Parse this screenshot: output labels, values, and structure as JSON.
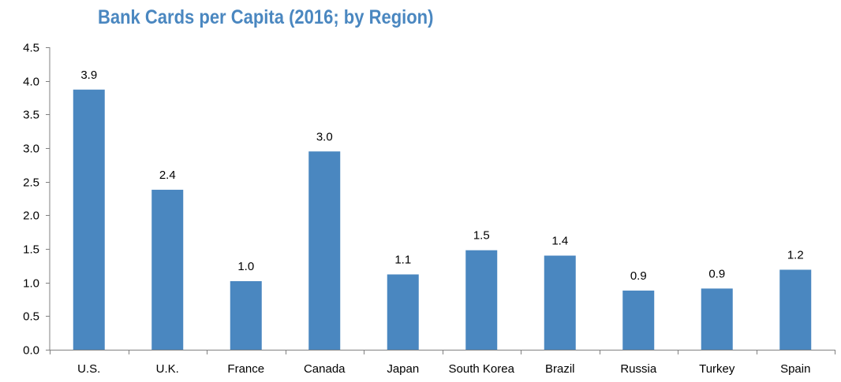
{
  "colors": {
    "title": "#4a87c0",
    "bar": "#4a87c0",
    "axis": "#808080",
    "text": "#000000"
  },
  "chart_data": {
    "type": "bar",
    "title": "Bank Cards per Capita (2016; by Region)",
    "xlabel": "",
    "ylabel": "",
    "categories": [
      "U.S.",
      "U.K.",
      "France",
      "Canada",
      "Japan",
      "South Korea",
      "Brazil",
      "Russia",
      "Turkey",
      "Spain"
    ],
    "values": [
      3.87,
      2.38,
      1.02,
      2.95,
      1.12,
      1.48,
      1.4,
      0.88,
      0.91,
      1.19
    ],
    "data_labels": [
      "3.9",
      "2.4",
      "1.0",
      "3.0",
      "1.1",
      "1.5",
      "1.4",
      "0.9",
      "0.9",
      "1.2"
    ],
    "yticks": [
      "0.0",
      "0.5",
      "1.0",
      "1.5",
      "2.0",
      "2.5",
      "3.0",
      "3.5",
      "4.0",
      "4.5"
    ],
    "ylim": [
      0,
      4.5
    ],
    "grid": false,
    "legend": "none"
  }
}
